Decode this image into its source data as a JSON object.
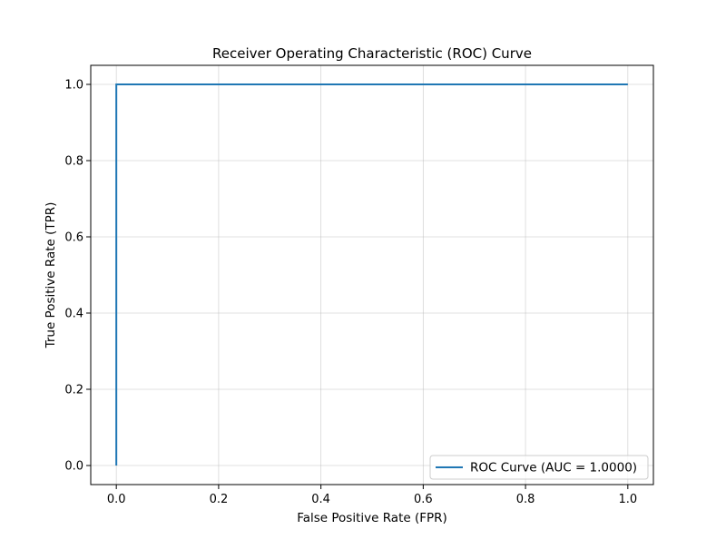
{
  "chart_data": {
    "type": "line",
    "title": "Receiver Operating Characteristic (ROC) Curve",
    "xlabel": "False Positive Rate (FPR)",
    "ylabel": "True Positive Rate (TPR)",
    "xlim": [
      -0.05,
      1.05
    ],
    "ylim": [
      -0.05,
      1.05
    ],
    "xticks": [
      0.0,
      0.2,
      0.4,
      0.6,
      0.8,
      1.0
    ],
    "yticks": [
      0.0,
      0.2,
      0.4,
      0.6,
      0.8,
      1.0
    ],
    "xtick_labels": [
      "0.0",
      "0.2",
      "0.4",
      "0.6",
      "0.8",
      "1.0"
    ],
    "ytick_labels": [
      "0.0",
      "0.2",
      "0.4",
      "0.6",
      "0.8",
      "1.0"
    ],
    "grid": true,
    "legend_position": "lower-right",
    "series": [
      {
        "name": "ROC Curve (AUC = 1.0000)",
        "color": "#1f77b4",
        "x": [
          0.0,
          0.0,
          1.0
        ],
        "y": [
          0.0,
          1.0,
          1.0
        ]
      }
    ]
  }
}
